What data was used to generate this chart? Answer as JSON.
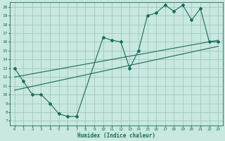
{
  "xlabel": "Humidex (Indice chaleur)",
  "xlim": [
    -0.5,
    23.5
  ],
  "ylim": [
    6.5,
    20.5
  ],
  "xticks": [
    0,
    1,
    2,
    3,
    4,
    5,
    6,
    7,
    8,
    9,
    10,
    11,
    12,
    13,
    14,
    15,
    16,
    17,
    18,
    19,
    20,
    21,
    22,
    23
  ],
  "yticks": [
    7,
    8,
    9,
    10,
    11,
    12,
    13,
    14,
    15,
    16,
    17,
    18,
    19,
    20
  ],
  "bg_color": "#c8e8e0",
  "grid_color": "#a0c8be",
  "line_color": "#1a6b5a",
  "curve_x": [
    0,
    1,
    2,
    3,
    4,
    5,
    6,
    7,
    10,
    11,
    12,
    13,
    14,
    15,
    16,
    17,
    18,
    19,
    20,
    21,
    22,
    23
  ],
  "curve_y": [
    13,
    11.5,
    10,
    10,
    9,
    7.8,
    7.5,
    7.5,
    16.5,
    16.2,
    16,
    13,
    15,
    19,
    19.3,
    20.2,
    19.5,
    20.2,
    18.5,
    19.8,
    16,
    16
  ],
  "trend1_x": [
    0,
    23
  ],
  "trend1_y": [
    10.5,
    15.5
  ],
  "trend2_x": [
    0,
    23
  ],
  "trend2_y": [
    12.0,
    16.2
  ],
  "marker": "D",
  "marker_size": 2.0,
  "linewidth": 0.8
}
